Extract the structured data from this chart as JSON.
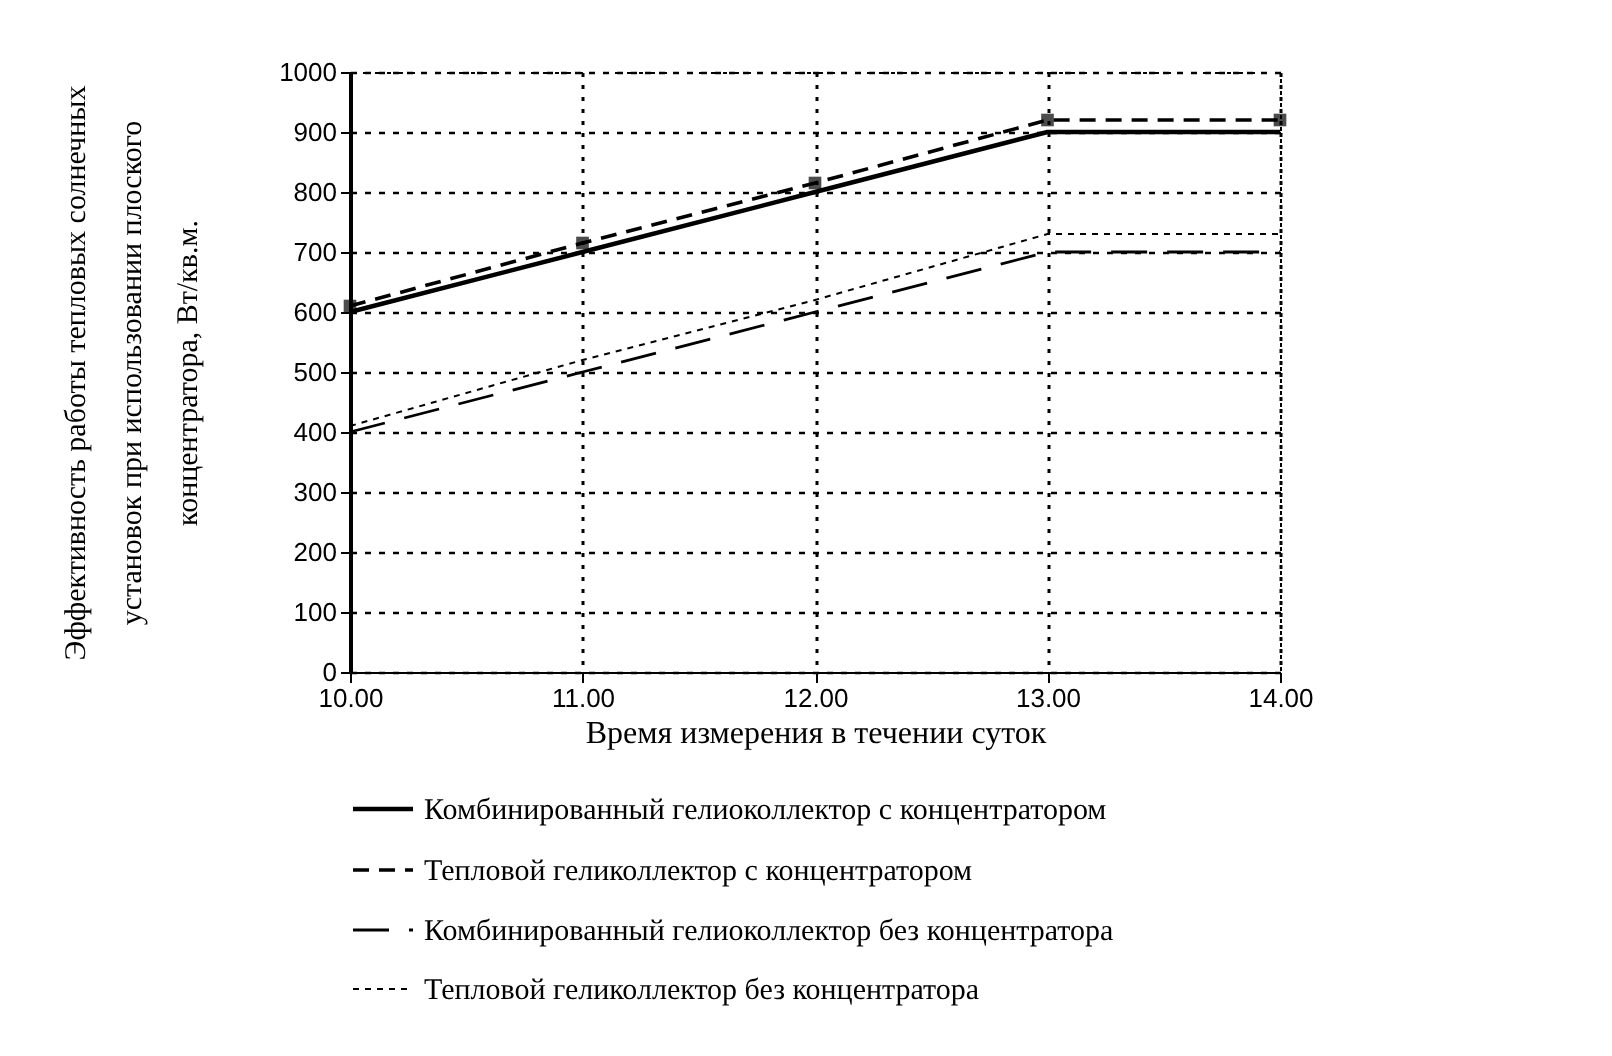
{
  "chart_data": {
    "type": "line",
    "xlabel": "Время измерения в течении суток",
    "ylabel": "Эффективность работы тепловых солнечных установок при использовании плоского концентратора, Вт/кв.м.",
    "x": [
      10,
      11,
      12,
      13,
      14
    ],
    "xlim": [
      10,
      14
    ],
    "xticks": [
      {
        "value": 10,
        "label": "10.00"
      },
      {
        "value": 11,
        "label": "11.00"
      },
      {
        "value": 12,
        "label": "12.00"
      },
      {
        "value": 13,
        "label": "13.00"
      },
      {
        "value": 14,
        "label": "14.00"
      }
    ],
    "ylim": [
      0,
      1000
    ],
    "yticks": [
      0,
      100,
      200,
      300,
      400,
      500,
      600,
      700,
      800,
      900,
      1000
    ],
    "grid": true,
    "legend": "bottom",
    "series": [
      {
        "name": "Комбинированный гелиоколлектор с концентратором",
        "color": "#000000",
        "line_style": "solid",
        "values": [
          600,
          700,
          800,
          900,
          900
        ]
      },
      {
        "name": "Тепловой геликоллектор с концентратором",
        "color": "#000000",
        "line_style": "dashed",
        "marker": "square",
        "values": [
          610,
          715,
          815,
          920,
          920
        ]
      },
      {
        "name": "Комбинированный гелиоколлектор без концентратора",
        "color": "#000000",
        "line_style": "dashed",
        "values": [
          400,
          500,
          600,
          700,
          700
        ]
      },
      {
        "name": "Тепловой геликоллектор без концентратора",
        "color": "#000000",
        "line_style": "dotted",
        "values": [
          410,
          520,
          620,
          730,
          730
        ]
      }
    ]
  }
}
